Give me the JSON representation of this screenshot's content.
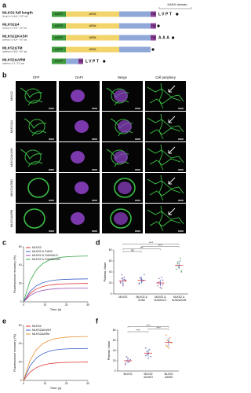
{
  "panel_a": {
    "label": "a",
    "kash_label": "KASH domain",
    "domains": {
      "gfp": "eGFP",
      "arm": "ARM",
      "tm": "TM"
    },
    "constructs": [
      {
        "name": "MLKS2 full length",
        "note": "(length of mlks2 = 637 aa)",
        "tail": "LVPT"
      },
      {
        "name": "MLKS2Δ4",
        "note": "(deletion of 634 - 637 aa)"
      },
      {
        "name": "MLKS2ΔKASH",
        "note": "(deletion of 624 - 637 aa)",
        "tail": "AAA"
      },
      {
        "name": "MLKS2ΔTM",
        "note": "(deletion of 605 - 637 aa)"
      },
      {
        "name": "MLKS2ΔARM",
        "note": "(deletion of 3 - 517 aa)",
        "tail": "LVPT"
      }
    ]
  },
  "panel_b": {
    "label": "b",
    "columns": [
      "GFP",
      "DAPI",
      "Merge",
      "Cell periphery"
    ],
    "rows": [
      "MLKS2",
      "MLKS2Δ4",
      "MLKS2ΔKASH",
      "MLKS2ΔTMD",
      "MLKS2ΔARM"
    ]
  },
  "chart_data": [
    {
      "type": "line",
      "label": "c",
      "xlabel": "Time (s)",
      "ylabel": "Fluorescence recovery (%)",
      "x": [
        0,
        3,
        6,
        9,
        12,
        15,
        18,
        21,
        24,
        27,
        30
      ],
      "xlim": [
        0,
        30
      ],
      "xticks": [
        0,
        10,
        20,
        30
      ],
      "ylim": [
        0,
        60
      ],
      "yticks": [
        0,
        20,
        40,
        60
      ],
      "series": [
        {
          "name": "MLKS2",
          "color": "#e03030",
          "values": [
            0,
            9,
            14,
            16.7,
            18.2,
            19,
            19.5,
            19.7,
            19.8,
            19.9,
            20
          ]
        },
        {
          "name": "MLKS2 & SUN2",
          "color": "#3a5fc8",
          "values": [
            0,
            11.3,
            17.5,
            20.9,
            22.7,
            23.8,
            24.3,
            24.6,
            24.8,
            24.9,
            25
          ]
        },
        {
          "name": "MLKS2 & SUN2ΔCC",
          "color": "#9a4fb0",
          "values": [
            0,
            6.8,
            10.5,
            12.5,
            13.6,
            14.3,
            14.6,
            14.8,
            14.9,
            14.9,
            15
          ]
        },
        {
          "name": "MLKS2 & SUN2ΔSUN",
          "color": "#3aa84a",
          "values": [
            0,
            22.6,
            35,
            41.8,
            45.5,
            47.5,
            48.7,
            49.3,
            49.6,
            49.8,
            49.9
          ]
        }
      ]
    },
    {
      "type": "dotplot",
      "label": "d",
      "ylabel": "Plateau Value",
      "ylim": [
        0,
        80
      ],
      "yticks": [
        0,
        20,
        40,
        60,
        80
      ],
      "significance": [
        "ns",
        "***",
        "****",
        "****"
      ],
      "groups": [
        {
          "name": [
            "MLKS2"
          ],
          "color": "#8a6aa8",
          "values": [
            22,
            28,
            18,
            30,
            25,
            20,
            35,
            15,
            26,
            24
          ],
          "mean": 24,
          "sd": 6
        },
        {
          "name": [
            "MLKS2 &",
            "SUN2"
          ],
          "color": "#6a7ab8",
          "values": [
            20,
            30,
            26,
            24,
            35,
            18,
            28,
            22
          ],
          "mean": 25,
          "sd": 6
        },
        {
          "name": [
            "MLKS2 &",
            "SUN2ΔCC"
          ],
          "color": "#a46ab0",
          "values": [
            15,
            22,
            18,
            10,
            25,
            20,
            28,
            12,
            30,
            17
          ],
          "mean": 20,
          "sd": 6
        },
        {
          "name": [
            "MLKS2 &",
            "SUN2ΔSUN"
          ],
          "color": "#5aa86a",
          "values": [
            45,
            55,
            50,
            60,
            42,
            52,
            58,
            48,
            65,
            40
          ],
          "mean": 52,
          "sd": 7
        }
      ]
    },
    {
      "type": "line",
      "label": "e",
      "xlabel": "Time (s)",
      "ylabel": "Fluorescence recovery (%)",
      "x": [
        0,
        3,
        6,
        9,
        12,
        15,
        18,
        21,
        24,
        27,
        30
      ],
      "xlim": [
        0,
        30
      ],
      "xticks": [
        0,
        10,
        20,
        30
      ],
      "ylim": [
        0,
        60
      ],
      "yticks": [
        0,
        20,
        40,
        60
      ],
      "series": [
        {
          "name": "MLKS2",
          "color": "#e03030",
          "values": [
            0,
            9,
            14,
            16.7,
            18.2,
            19,
            19.5,
            19.7,
            19.8,
            19.9,
            20
          ]
        },
        {
          "name": "MLKS2ΔKASH",
          "color": "#3a5fc8",
          "values": [
            0,
            15.8,
            24.5,
            29.2,
            31.8,
            33.3,
            34.1,
            34.5,
            34.7,
            34.8,
            34.9
          ]
        },
        {
          "name": "MLKS2ΔARM",
          "color": "#e89030",
          "values": [
            0,
            21.6,
            33.6,
            40.1,
            43.6,
            45.6,
            46.7,
            47.3,
            47.6,
            47.8,
            47.9
          ]
        }
      ]
    },
    {
      "type": "dotplot",
      "label": "f",
      "ylabel": "Plateau Value",
      "ylim": [
        0,
        80
      ],
      "yticks": [
        0,
        20,
        40,
        60,
        80
      ],
      "significance": [
        "****",
        "****",
        "****"
      ],
      "groups": [
        {
          "name": [
            "MLKS2"
          ],
          "color": "#8a6aa8",
          "values": [
            15,
            20,
            25,
            18,
            22,
            12,
            28
          ],
          "mean": 20,
          "sd": 5
        },
        {
          "name": [
            "MLKS2",
            "ΔKASH"
          ],
          "color": "#6a7ab8",
          "values": [
            30,
            38,
            35,
            42,
            28,
            45,
            32,
            25
          ],
          "mean": 35,
          "sd": 7
        },
        {
          "name": [
            "MLKS2",
            "ΔARM"
          ],
          "color": "#e89030",
          "values": [
            50,
            60,
            45,
            65,
            55,
            70,
            48,
            58
          ],
          "mean": 56,
          "sd": 8
        }
      ]
    }
  ]
}
